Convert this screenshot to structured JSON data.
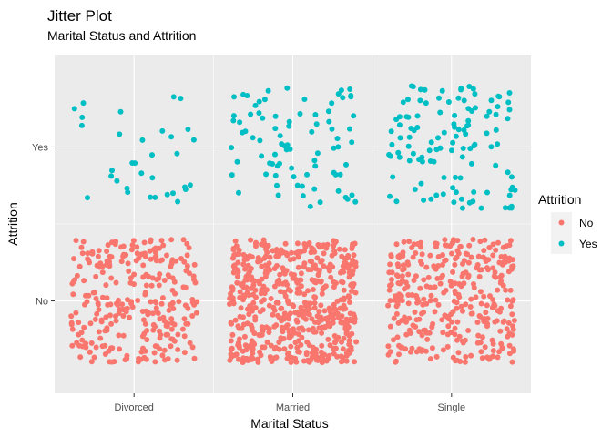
{
  "chart_data": {
    "type": "scatter",
    "title": "Jitter Plot",
    "subtitle": "Marital Status and Attrition",
    "xlabel": "Marital Status",
    "ylabel": "Attrition",
    "x_categories": [
      "Divorced",
      "Married",
      "Single"
    ],
    "y_categories": [
      "No",
      "Yes"
    ],
    "grid": true,
    "legend": {
      "title": "Attrition",
      "position": "right",
      "entries": [
        {
          "label": "No",
          "color": "#F8766D"
        },
        {
          "label": "Yes",
          "color": "#00BFC4"
        }
      ]
    },
    "series": [
      {
        "name": "No",
        "color": "#F8766D",
        "points": [
          {
            "x": "Divorced",
            "y": "No",
            "count": 294
          },
          {
            "x": "Married",
            "y": "No",
            "count": 589
          },
          {
            "x": "Single",
            "y": "No",
            "count": 350
          }
        ]
      },
      {
        "name": "Yes",
        "color": "#00BFC4",
        "points": [
          {
            "x": "Divorced",
            "y": "Yes",
            "count": 33
          },
          {
            "x": "Married",
            "y": "Yes",
            "count": 84
          },
          {
            "x": "Single",
            "y": "Yes",
            "count": 120
          }
        ]
      }
    ],
    "jitter": {
      "x_halfwidth": 0.4,
      "y_halfwidth": 0.4
    }
  }
}
